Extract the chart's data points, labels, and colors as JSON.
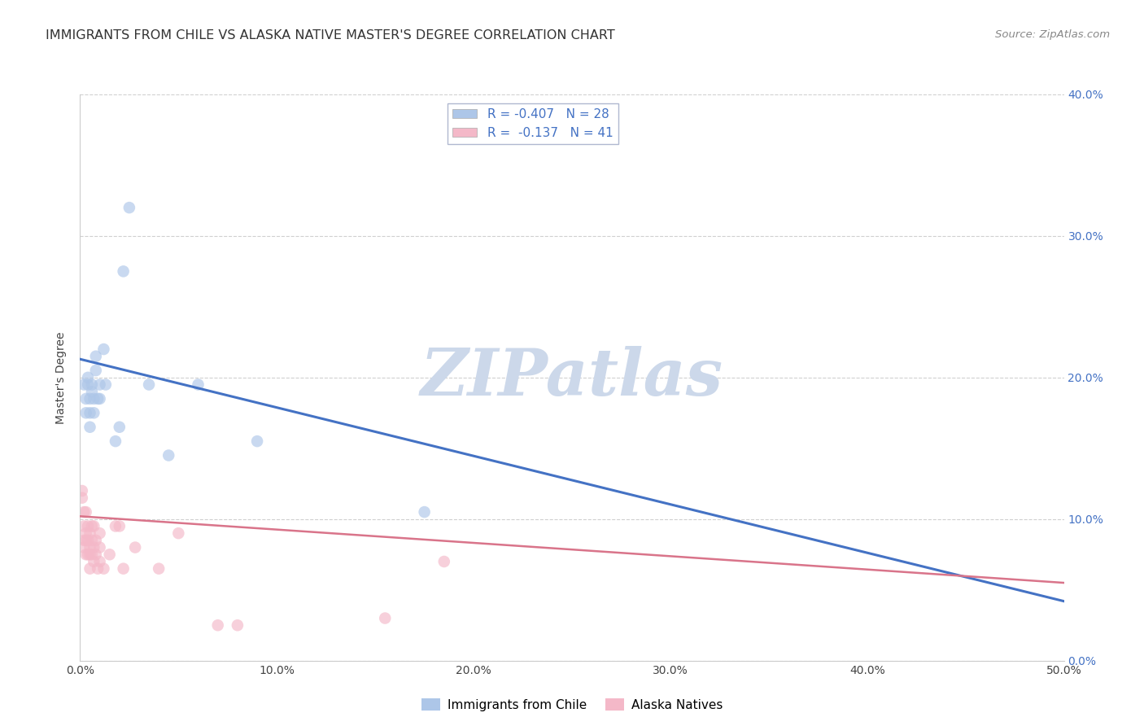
{
  "title": "IMMIGRANTS FROM CHILE VS ALASKA NATIVE MASTER'S DEGREE CORRELATION CHART",
  "source": "Source: ZipAtlas.com",
  "ylabel": "Master's Degree",
  "watermark": "ZIPatlas",
  "xlim": [
    0,
    0.5
  ],
  "ylim": [
    0,
    0.4
  ],
  "blue_R": "-0.407",
  "blue_N": "28",
  "pink_R": "-0.137",
  "pink_N": "41",
  "blue_color": "#adc6e8",
  "blue_line_color": "#4472C4",
  "pink_color": "#f4b8c8",
  "pink_line_color": "#d9748a",
  "legend_label_blue": "Immigrants from Chile",
  "legend_label_pink": "Alaska Natives",
  "blue_scatter_x": [
    0.002,
    0.003,
    0.003,
    0.004,
    0.004,
    0.005,
    0.005,
    0.005,
    0.006,
    0.006,
    0.007,
    0.007,
    0.008,
    0.008,
    0.009,
    0.01,
    0.01,
    0.012,
    0.013,
    0.018,
    0.02,
    0.022,
    0.025,
    0.035,
    0.045,
    0.06,
    0.09,
    0.175
  ],
  "blue_scatter_y": [
    0.195,
    0.175,
    0.185,
    0.195,
    0.2,
    0.185,
    0.175,
    0.165,
    0.19,
    0.195,
    0.185,
    0.175,
    0.215,
    0.205,
    0.185,
    0.195,
    0.185,
    0.22,
    0.195,
    0.155,
    0.165,
    0.275,
    0.32,
    0.195,
    0.145,
    0.195,
    0.155,
    0.105
  ],
  "pink_scatter_x": [
    0.001,
    0.001,
    0.002,
    0.002,
    0.002,
    0.002,
    0.003,
    0.003,
    0.003,
    0.003,
    0.004,
    0.004,
    0.004,
    0.005,
    0.005,
    0.005,
    0.005,
    0.006,
    0.006,
    0.006,
    0.007,
    0.007,
    0.007,
    0.008,
    0.008,
    0.009,
    0.01,
    0.01,
    0.01,
    0.012,
    0.015,
    0.018,
    0.02,
    0.022,
    0.028,
    0.04,
    0.05,
    0.07,
    0.08,
    0.155,
    0.185
  ],
  "pink_scatter_y": [
    0.115,
    0.12,
    0.08,
    0.085,
    0.095,
    0.105,
    0.075,
    0.085,
    0.09,
    0.105,
    0.075,
    0.085,
    0.095,
    0.065,
    0.075,
    0.08,
    0.09,
    0.075,
    0.085,
    0.095,
    0.07,
    0.08,
    0.095,
    0.075,
    0.085,
    0.065,
    0.07,
    0.08,
    0.09,
    0.065,
    0.075,
    0.095,
    0.095,
    0.065,
    0.08,
    0.065,
    0.09,
    0.025,
    0.025,
    0.03,
    0.07
  ],
  "blue_trendline_x": [
    0.0,
    0.5
  ],
  "blue_trendline_y": [
    0.213,
    0.042
  ],
  "pink_trendline_x": [
    0.0,
    0.5
  ],
  "pink_trendline_y": [
    0.102,
    0.055
  ],
  "scatter_size": 110,
  "scatter_alpha": 0.65,
  "title_fontsize": 11.5,
  "source_fontsize": 9.5,
  "axis_fontsize": 10,
  "tick_fontsize": 10,
  "right_tick_color": "#4472C4",
  "watermark_color": "#ccd8ea",
  "watermark_fontsize": 58,
  "grid_color": "#d0d0d0",
  "spine_color": "#cccccc"
}
